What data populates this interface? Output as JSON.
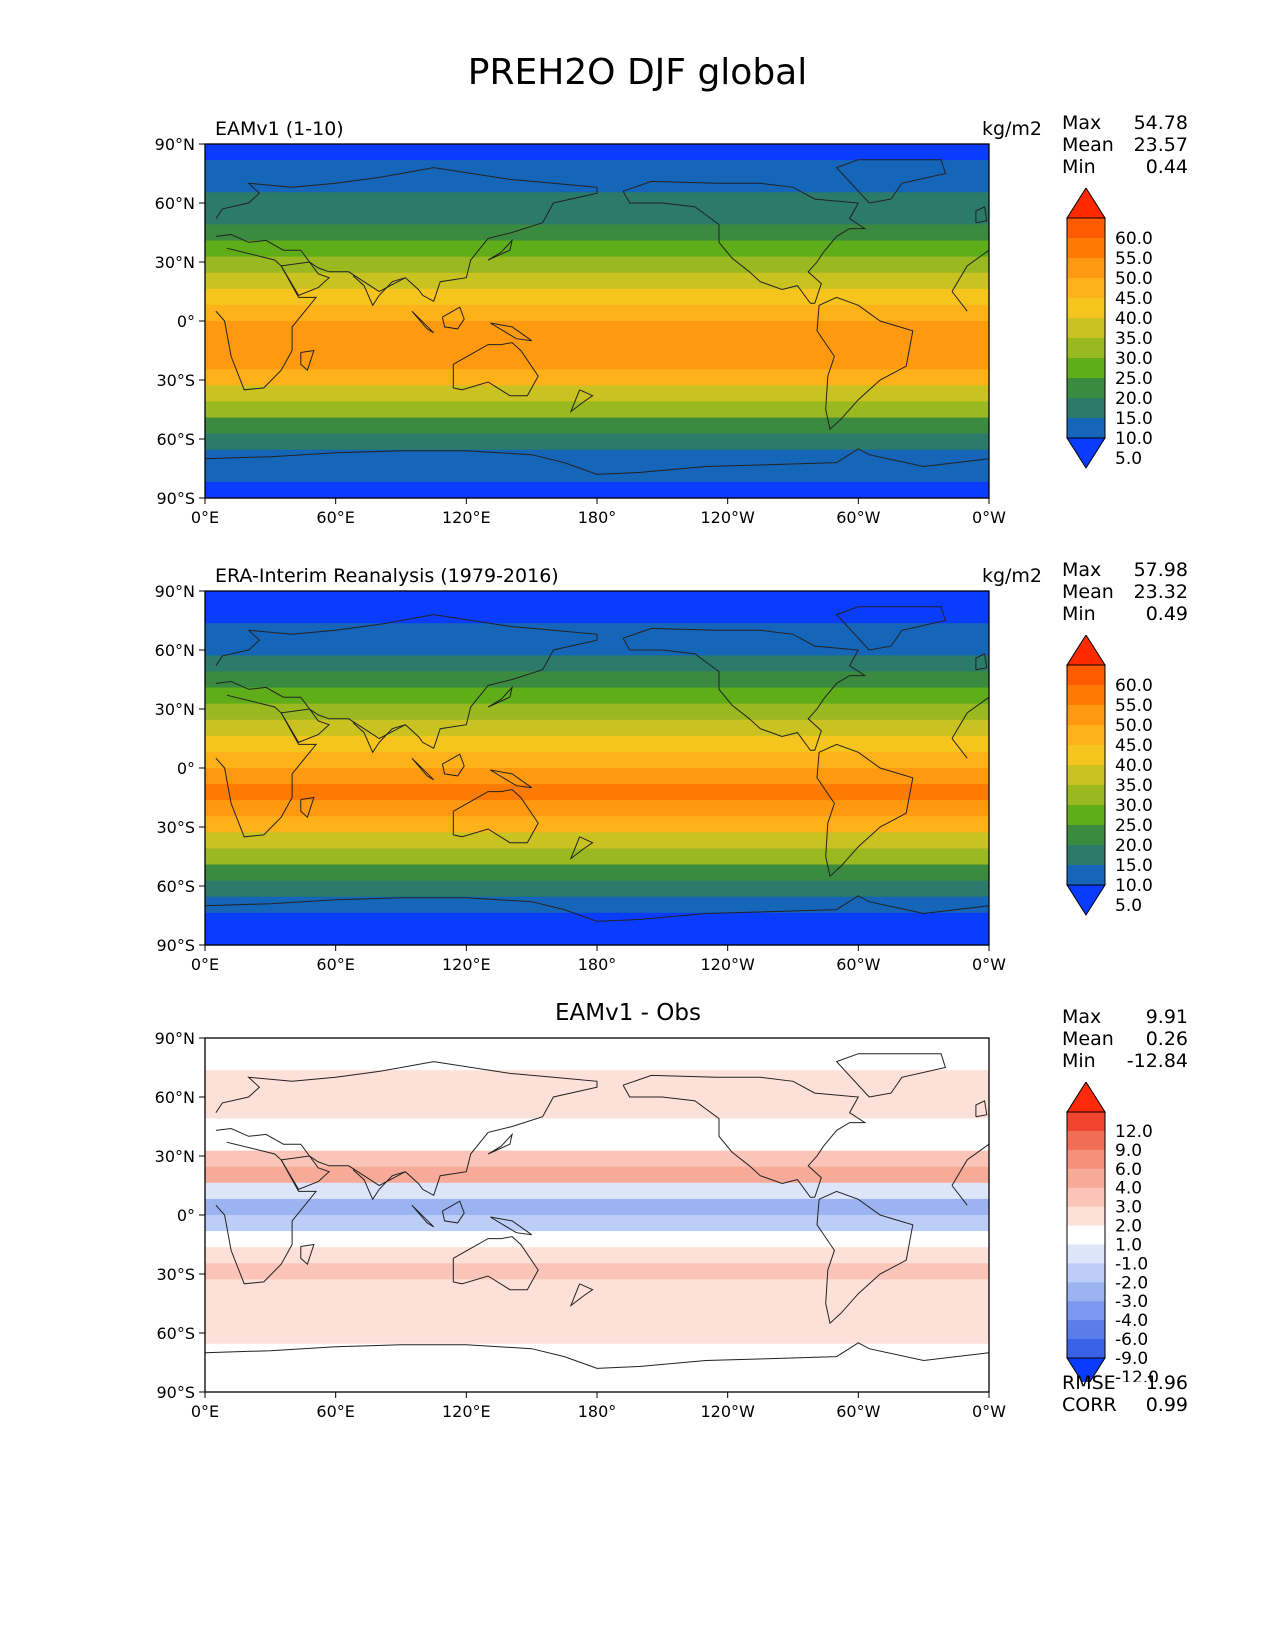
{
  "figure_title": "PREH2O DJF global",
  "chart_data": [
    {
      "type": "heatmap",
      "title": "EAMv1 (1-10)",
      "units": "kg/m2",
      "stats": [
        {
          "label": "Max",
          "value": "54.78"
        },
        {
          "label": "Mean",
          "value": "23.57"
        },
        {
          "label": "Min",
          "value": "0.44"
        }
      ],
      "x_ticks": [
        "0°E",
        "60°E",
        "120°E",
        "180°",
        "120°W",
        "60°W",
        "0°W"
      ],
      "y_ticks": [
        "90°N",
        "60°N",
        "30°N",
        "0°",
        "30°S",
        "60°S",
        "90°S"
      ],
      "xlim": [
        0,
        360
      ],
      "ylim": [
        -90,
        90
      ],
      "colorbar_levels": [
        "60.0",
        "55.0",
        "50.0",
        "45.0",
        "40.0",
        "35.0",
        "30.0",
        "25.0",
        "20.0",
        "15.0",
        "10.0",
        "5.0"
      ],
      "colormap": [
        "#ff2a00",
        "#ff5a00",
        "#ff7a00",
        "#ff9a10",
        "#ffb11a",
        "#f5c51e",
        "#c9c221",
        "#9ab81f",
        "#5fad18",
        "#3a8b3f",
        "#2b7a6a",
        "#1565b8",
        "#0a3cff"
      ],
      "band_values": [
        3,
        5,
        7,
        10,
        14,
        18,
        22,
        27,
        32,
        37,
        42,
        46,
        48,
        46,
        40,
        33,
        26,
        19,
        13,
        8,
        5,
        3
      ]
    },
    {
      "type": "heatmap",
      "title": "ERA-Interim Reanalysis (1979-2016)",
      "units": "kg/m2",
      "stats": [
        {
          "label": "Max",
          "value": "57.98"
        },
        {
          "label": "Mean",
          "value": "23.32"
        },
        {
          "label": "Min",
          "value": "0.49"
        }
      ],
      "x_ticks": [
        "0°E",
        "60°E",
        "120°E",
        "180°",
        "120°W",
        "60°W",
        "0°W"
      ],
      "y_ticks": [
        "90°N",
        "60°N",
        "30°N",
        "0°",
        "30°S",
        "60°S",
        "90°S"
      ],
      "xlim": [
        0,
        360
      ],
      "ylim": [
        -90,
        90
      ],
      "colorbar_levels": [
        "60.0",
        "55.0",
        "50.0",
        "45.0",
        "40.0",
        "35.0",
        "30.0",
        "25.0",
        "20.0",
        "15.0",
        "10.0",
        "5.0"
      ],
      "colormap": [
        "#ff2a00",
        "#ff5a00",
        "#ff7a00",
        "#ff9a10",
        "#ffb11a",
        "#f5c51e",
        "#c9c221",
        "#9ab81f",
        "#5fad18",
        "#3a8b3f",
        "#2b7a6a",
        "#1565b8",
        "#0a3cff"
      ],
      "band_values": [
        3,
        4,
        6,
        9,
        13,
        17,
        22,
        27,
        32,
        37,
        42,
        47,
        50,
        47,
        41,
        33,
        25,
        18,
        12,
        7,
        4,
        3
      ]
    },
    {
      "type": "heatmap",
      "title": "EAMv1 - Obs",
      "units": "",
      "stats": [
        {
          "label": "Max",
          "value": "9.91"
        },
        {
          "label": "Mean",
          "value": "0.26"
        },
        {
          "label": "Min",
          "value": "-12.84"
        }
      ],
      "extra_stats": [
        {
          "label": "RMSE",
          "value": "1.96"
        },
        {
          "label": "CORR",
          "value": "0.99"
        }
      ],
      "x_ticks": [
        "0°E",
        "60°E",
        "120°E",
        "180°",
        "120°W",
        "60°W",
        "0°W"
      ],
      "y_ticks": [
        "90°N",
        "60°N",
        "30°N",
        "0°",
        "30°S",
        "60°S",
        "90°S"
      ],
      "xlim": [
        0,
        360
      ],
      "ylim": [
        -90,
        90
      ],
      "colorbar_levels": [
        "12.0",
        "9.0",
        "6.0",
        "4.0",
        "3.0",
        "2.0",
        "1.0",
        "-1.0",
        "-2.0",
        "-3.0",
        "-4.0",
        "-6.0",
        "-9.0",
        "-12.0"
      ],
      "colormap": [
        "#ff2a0a",
        "#f0442e",
        "#f26d56",
        "#f5907c",
        "#f7aa98",
        "#fac5b8",
        "#fde1d8",
        "#ffffff",
        "#dde5fb",
        "#bccdf7",
        "#9cb3f2",
        "#7b98ee",
        "#5a7dea",
        "#3a62e6",
        "#0a3cff"
      ],
      "band_values": [
        0,
        0.5,
        1.5,
        1.5,
        1,
        0.5,
        0.5,
        2.5,
        3,
        -1,
        -3,
        -2,
        0.5,
        1.5,
        2,
        1.5,
        1,
        1.5,
        1,
        0.5,
        0.5,
        0
      ]
    }
  ]
}
